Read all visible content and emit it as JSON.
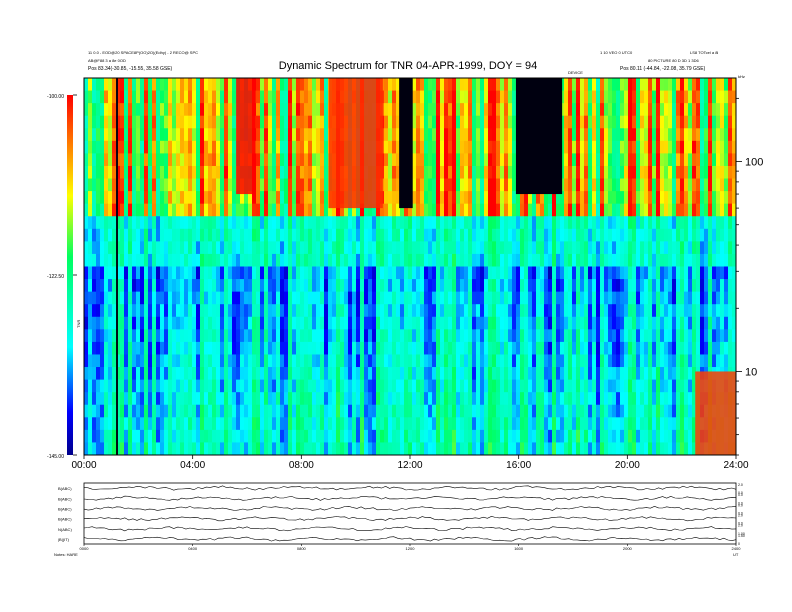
{
  "header": {
    "left_lines": [
      "11 0.0 - EOD@20 SPACE8P(OO)2O)(Edhy) - 2 RECO@ SPC",
      "AB@F88 3 a 8e 0OD",
      "Pos 83.34(-30.85, -15.55, 35.58 GSE)"
    ],
    "right_lines": [
      "1 10 VEO 0 UTC0",
      "LS8 TOTcel a 8l",
      "80 PICTURE 80 D 3D 1 3D6",
      "Pos 80.11 (-44.84, -22.08, 35.79 GSE)"
    ],
    "title": "Dynamic Spectrum for TNR 04-APR-1999, DOY = 94",
    "top_axis_mark": "DEVICE",
    "corner_unit": "kHz"
  },
  "colorbar": {
    "ticks": [
      "-100.00",
      "-122.50",
      "-145.00"
    ],
    "label": "TNR"
  },
  "chart_data": [
    {
      "type": "heatmap",
      "title": "Dynamic Spectrum for TNR 04-APR-1999, DOY = 94",
      "x_axis": {
        "unit": "UT hours",
        "range": [
          0,
          24
        ],
        "ticks": [
          "00:00",
          "04:00",
          "08:00",
          "12:00",
          "16:00",
          "20:00",
          "24:00"
        ]
      },
      "y_axis": {
        "unit": "kHz",
        "scale": "log",
        "range": [
          4,
          250
        ],
        "ticks": [
          {
            "value": 100,
            "label": "100"
          },
          {
            "value": 10,
            "label": "10"
          }
        ]
      },
      "color_scale": {
        "unit": "dB",
        "range": [
          -145.0,
          -100.0
        ],
        "ticks": [
          -100.0,
          -122.5,
          -145.0
        ]
      },
      "features": [
        {
          "name": "intense emission",
          "time_range": [
            5.6,
            6.3
          ],
          "freq_range": [
            70,
            250
          ],
          "level": -100
        },
        {
          "name": "intense emission",
          "time_range": [
            9.0,
            11.0
          ],
          "freq_range": [
            60,
            250
          ],
          "level": -102
        },
        {
          "name": "intense emission",
          "time_range": [
            22.5,
            24.0
          ],
          "freq_range": [
            4,
            10
          ],
          "level": -103
        },
        {
          "name": "data gap",
          "time_range": [
            15.9,
            17.6
          ],
          "freq_range": [
            70,
            250
          ],
          "level": -145
        },
        {
          "name": "data gap",
          "time_range": [
            11.6,
            12.1
          ],
          "freq_range": [
            60,
            250
          ],
          "level": -145
        },
        {
          "name": "vertical line",
          "time_range": [
            1.18,
            1.25
          ],
          "freq_range": [
            4,
            250
          ],
          "level": -145
        }
      ]
    },
    {
      "type": "line",
      "title": "",
      "x_axis": {
        "range": [
          0,
          24
        ],
        "ticks": [
          "0000",
          "0400",
          "0800",
          "1200",
          "1600",
          "2000",
          "2400"
        ]
      },
      "series": [
        {
          "label": "B(ABC)",
          "right_ticks": [
            "2.0",
            "0.0"
          ]
        },
        {
          "label": "B(ABC)",
          "right_ticks": [
            "0.0",
            "0.0"
          ]
        },
        {
          "label": "B(ABC)",
          "right_ticks": [
            "0.0",
            "0.0"
          ]
        },
        {
          "label": "B(ABC)",
          "right_ticks": [
            "2.0",
            "0.0"
          ]
        },
        {
          "label": "N(ABC)",
          "right_ticks": [
            "2.0",
            "1.00"
          ]
        },
        {
          "label": "|B|(IT)",
          "right_ticks": [
            "1.50",
            "0"
          ]
        }
      ],
      "footer_left": "Notes: HARE",
      "footer_right": "UT"
    }
  ]
}
